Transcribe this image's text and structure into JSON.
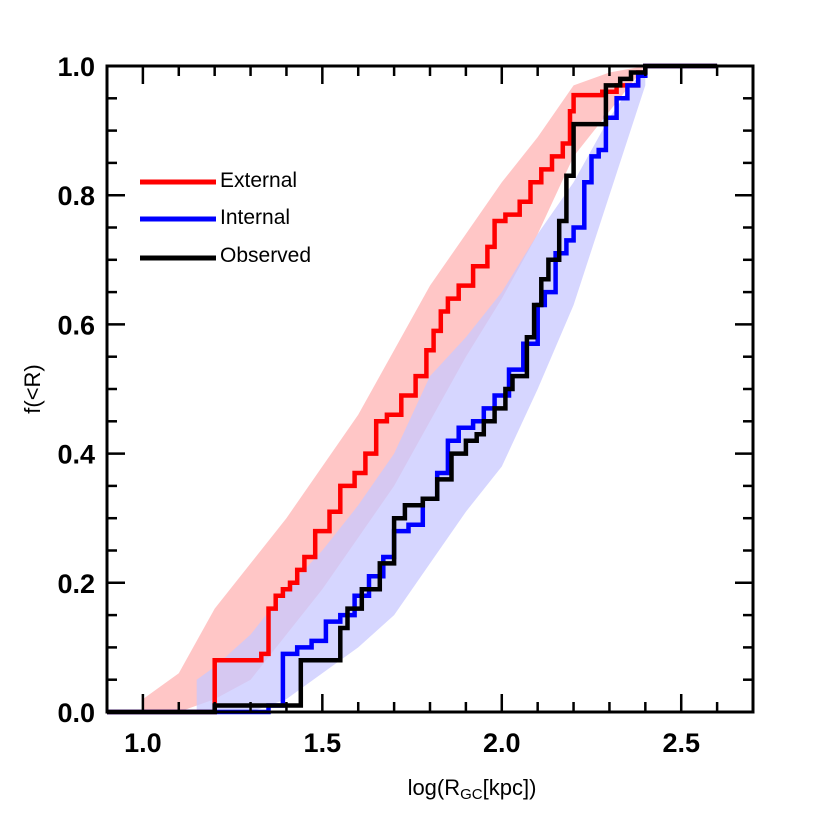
{
  "chart_data": {
    "type": "line",
    "title": "",
    "xlabel": "log(R",
    "xlabel_sub": "GC",
    "xlabel_tail": "[kpc])",
    "ylabel": "f(<R)",
    "xlim": [
      0.9,
      2.7
    ],
    "ylim": [
      0.0,
      1.0
    ],
    "xticks": [
      1.0,
      1.5,
      2.0,
      2.5
    ],
    "xtick_labels": [
      "1.0",
      "1.5",
      "2.0",
      "2.5"
    ],
    "yticks": [
      0.0,
      0.2,
      0.4,
      0.6,
      0.8,
      1.0
    ],
    "ytick_labels": [
      "0.0",
      "0.2",
      "0.4",
      "0.6",
      "0.8",
      "1.0"
    ],
    "grid": false,
    "legend_position": "upper-left",
    "series": [
      {
        "name": "External",
        "color": "#ff0000",
        "band_color": "#ffb3b3",
        "step_x": [
          0.9,
          1.2,
          1.2,
          1.33,
          1.35,
          1.37,
          1.39,
          1.41,
          1.43,
          1.45,
          1.48,
          1.52,
          1.55,
          1.59,
          1.62,
          1.65,
          1.68,
          1.72,
          1.76,
          1.79,
          1.81,
          1.83,
          1.85,
          1.88,
          1.92,
          1.96,
          1.98,
          2.01,
          2.05,
          2.08,
          2.11,
          2.14,
          2.17,
          2.19,
          2.2,
          2.28,
          2.32,
          2.38,
          2.4,
          2.6
        ],
        "step_y": [
          0.0,
          0.0,
          0.08,
          0.09,
          0.16,
          0.18,
          0.19,
          0.2,
          0.22,
          0.24,
          0.28,
          0.31,
          0.35,
          0.37,
          0.4,
          0.45,
          0.46,
          0.49,
          0.52,
          0.56,
          0.59,
          0.62,
          0.64,
          0.66,
          0.69,
          0.72,
          0.76,
          0.77,
          0.79,
          0.82,
          0.84,
          0.86,
          0.88,
          0.93,
          0.955,
          0.96,
          0.97,
          0.99,
          1.0,
          1.0
        ],
        "band_x": [
          1.0,
          1.1,
          1.2,
          1.3,
          1.4,
          1.5,
          1.6,
          1.7,
          1.8,
          1.9,
          2.0,
          2.1,
          2.2,
          2.3,
          2.4
        ],
        "band_lower": [
          0.0,
          0.0,
          0.02,
          0.05,
          0.12,
          0.19,
          0.27,
          0.35,
          0.45,
          0.55,
          0.64,
          0.74,
          0.86,
          0.93,
          1.0
        ],
        "band_upper": [
          0.02,
          0.06,
          0.16,
          0.23,
          0.3,
          0.38,
          0.46,
          0.56,
          0.66,
          0.74,
          0.82,
          0.89,
          0.97,
          0.99,
          1.0
        ]
      },
      {
        "name": "Internal",
        "color": "#0000ff",
        "band_color": "#c8c8ff",
        "step_x": [
          0.9,
          1.35,
          1.35,
          1.39,
          1.43,
          1.47,
          1.51,
          1.55,
          1.59,
          1.63,
          1.67,
          1.7,
          1.74,
          1.78,
          1.82,
          1.85,
          1.88,
          1.92,
          1.95,
          1.98,
          2.02,
          2.06,
          2.1,
          2.12,
          2.15,
          2.18,
          2.2,
          2.23,
          2.25,
          2.27,
          2.29,
          2.32,
          2.35,
          2.38,
          2.4,
          2.6
        ],
        "step_y": [
          0.0,
          0.0,
          0.01,
          0.09,
          0.1,
          0.11,
          0.14,
          0.15,
          0.18,
          0.21,
          0.24,
          0.28,
          0.29,
          0.33,
          0.37,
          0.42,
          0.44,
          0.45,
          0.47,
          0.49,
          0.53,
          0.57,
          0.63,
          0.65,
          0.71,
          0.73,
          0.75,
          0.82,
          0.86,
          0.87,
          0.92,
          0.95,
          0.97,
          0.985,
          1.0,
          1.0
        ],
        "band_x": [
          1.15,
          1.2,
          1.3,
          1.4,
          1.5,
          1.6,
          1.7,
          1.8,
          1.9,
          2.0,
          2.1,
          2.2,
          2.3,
          2.4
        ],
        "band_lower": [
          0.0,
          0.0,
          0.0,
          0.02,
          0.06,
          0.1,
          0.15,
          0.23,
          0.31,
          0.38,
          0.5,
          0.63,
          0.8,
          0.97
        ],
        "band_upper": [
          0.05,
          0.07,
          0.12,
          0.19,
          0.25,
          0.32,
          0.4,
          0.52,
          0.58,
          0.65,
          0.74,
          0.82,
          0.92,
          1.0
        ]
      },
      {
        "name": "Observed",
        "color": "#000000",
        "step_x": [
          0.9,
          1.2,
          1.2,
          1.44,
          1.44,
          1.52,
          1.55,
          1.57,
          1.61,
          1.66,
          1.7,
          1.73,
          1.76,
          1.78,
          1.82,
          1.86,
          1.9,
          1.93,
          1.95,
          1.98,
          2.01,
          2.03,
          2.07,
          2.09,
          2.11,
          2.13,
          2.16,
          2.18,
          2.2,
          2.23,
          2.29,
          2.33,
          2.36,
          2.4,
          2.6
        ],
        "step_y": [
          0.0,
          0.0,
          0.01,
          0.01,
          0.08,
          0.08,
          0.13,
          0.16,
          0.19,
          0.23,
          0.3,
          0.32,
          0.32,
          0.33,
          0.36,
          0.4,
          0.42,
          0.43,
          0.45,
          0.47,
          0.5,
          0.52,
          0.58,
          0.63,
          0.67,
          0.7,
          0.76,
          0.83,
          0.91,
          0.91,
          0.97,
          0.98,
          0.99,
          1.0,
          1.0
        ]
      }
    ]
  }
}
